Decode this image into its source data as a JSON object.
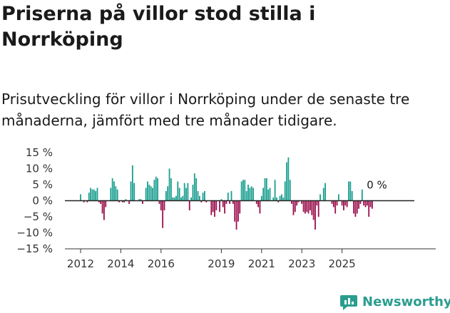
{
  "title": "Priserna på villor stod stilla i Norrköping",
  "subtitle": "Prisutveckling för villor i Norrköping under de senaste tre månaderna, jämfört med tre månader tidigare.",
  "brand": {
    "name": "Newsworthy",
    "icon": "newsworthy-logo-icon"
  },
  "colors": {
    "positive": "#1a9e8f",
    "negative": "#9b0e4d",
    "text": "#333333"
  },
  "chart_data": {
    "type": "bar",
    "title": "",
    "xlabel": "",
    "ylabel": "",
    "unit": "%",
    "ylim": [
      -15,
      15
    ],
    "yticks": [
      15,
      10,
      5,
      0,
      -5,
      -10,
      -15
    ],
    "ytick_labels": [
      "15 %",
      "10 %",
      "5 %",
      "0 %",
      "−5 %",
      "−10 %",
      "−15 %"
    ],
    "xticks": [
      2012,
      2014,
      2016,
      2019,
      2021,
      2023,
      2025
    ],
    "grid": false,
    "legend": "none",
    "annotation": "0 %",
    "series": [
      {
        "start": "2012-01",
        "frequency": "monthly",
        "values": [
          2,
          0,
          -0.5,
          0,
          -0.5,
          2.5,
          4,
          3.5,
          3.5,
          3,
          4,
          -0.5,
          -1,
          -4,
          -6,
          -2,
          0,
          0,
          4,
          7,
          6,
          4.5,
          3.5,
          -0.5,
          0,
          -0.5,
          -0.5,
          0.5,
          0,
          -1,
          6,
          11,
          5.5,
          0,
          0,
          0.5,
          0.5,
          -1,
          0,
          4,
          6,
          5,
          4.5,
          4,
          6.5,
          7.5,
          7,
          -1,
          -3,
          -8.5,
          -3,
          3,
          4.5,
          10,
          7,
          1,
          1,
          1.5,
          6,
          4,
          1,
          1.5,
          5.5,
          4,
          5.5,
          -3,
          1,
          5,
          8.5,
          7,
          3,
          1.5,
          -0.5,
          2.5,
          3,
          -0.5,
          0,
          0,
          -4.5,
          -3.5,
          -5,
          -3,
          0,
          -3.5,
          0.5,
          -2,
          -4,
          -1,
          2.5,
          -1,
          3,
          -1,
          -6.5,
          -9,
          -6.5,
          -4,
          6,
          6.5,
          6.5,
          3,
          5,
          4,
          4.5,
          4,
          0,
          -1,
          -2,
          -4,
          1.5,
          4,
          7,
          7,
          3.5,
          4,
          0,
          1,
          6.5,
          1,
          -0.5,
          1.5,
          2,
          1,
          6,
          12,
          13.5,
          6.5,
          -1,
          -4.5,
          -3.5,
          -1.5,
          -0.5,
          0,
          -1,
          -3.5,
          -4,
          -3.5,
          -4,
          -3,
          -4.5,
          -6,
          -9,
          -1.5,
          -5,
          2,
          0,
          4,
          5.5,
          0,
          0,
          0,
          -1,
          -2,
          -4,
          -1.5,
          2,
          0,
          -1.5,
          -3,
          -1.5,
          -2,
          6,
          6,
          3,
          -4,
          -5,
          -4,
          -2.5,
          -1,
          3.5,
          -1.5,
          -2,
          -1.5,
          -5,
          -2,
          -2.5,
          0
        ]
      }
    ]
  }
}
